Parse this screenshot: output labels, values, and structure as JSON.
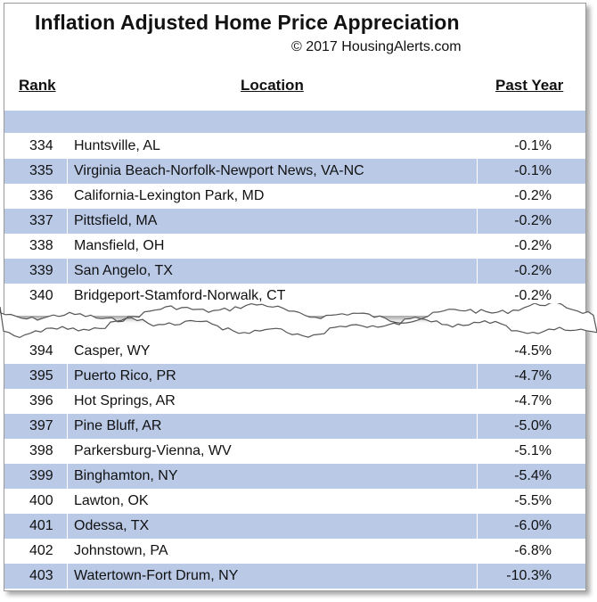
{
  "title": "Inflation Adjusted Home Price Appreciation",
  "copyright": "© 2017 HousingAlerts.com",
  "chart_data": {
    "type": "table",
    "columns": [
      "Rank",
      "Location",
      "Past Year"
    ],
    "rows_top": [
      {
        "rank": "334",
        "location": "Huntsville, AL",
        "past_year": "-0.1%"
      },
      {
        "rank": "335",
        "location": "Virginia Beach-Norfolk-Newport News, VA-NC",
        "past_year": "-0.1%"
      },
      {
        "rank": "336",
        "location": "California-Lexington Park, MD",
        "past_year": "-0.2%"
      },
      {
        "rank": "337",
        "location": "Pittsfield, MA",
        "past_year": "-0.2%"
      },
      {
        "rank": "338",
        "location": "Mansfield, OH",
        "past_year": "-0.2%"
      },
      {
        "rank": "339",
        "location": "San Angelo, TX",
        "past_year": "-0.2%"
      },
      {
        "rank": "340",
        "location": "Bridgeport-Stamford-Norwalk, CT",
        "past_year": "-0.2%"
      }
    ],
    "rows_bottom": [
      {
        "rank": "394",
        "location": "Casper, WY",
        "past_year": "-4.5%"
      },
      {
        "rank": "395",
        "location": "Puerto Rico, PR",
        "past_year": "-4.7%"
      },
      {
        "rank": "396",
        "location": "Hot Springs, AR",
        "past_year": "-4.7%"
      },
      {
        "rank": "397",
        "location": "Pine Bluff, AR",
        "past_year": "-5.0%"
      },
      {
        "rank": "398",
        "location": "Parkersburg-Vienna, WV",
        "past_year": "-5.1%"
      },
      {
        "rank": "399",
        "location": "Binghamton, NY",
        "past_year": "-5.4%"
      },
      {
        "rank": "400",
        "location": "Lawton, OK",
        "past_year": "-5.5%"
      },
      {
        "rank": "401",
        "location": "Odessa, TX",
        "past_year": "-6.0%"
      },
      {
        "rank": "402",
        "location": "Johnstown, PA",
        "past_year": "-6.8%"
      },
      {
        "rank": "403",
        "location": "Watertown-Fort Drum, NY",
        "past_year": "-10.3%"
      }
    ],
    "colors": {
      "row_shade": "#b9c9e6",
      "row_plain": "#ffffff"
    }
  }
}
